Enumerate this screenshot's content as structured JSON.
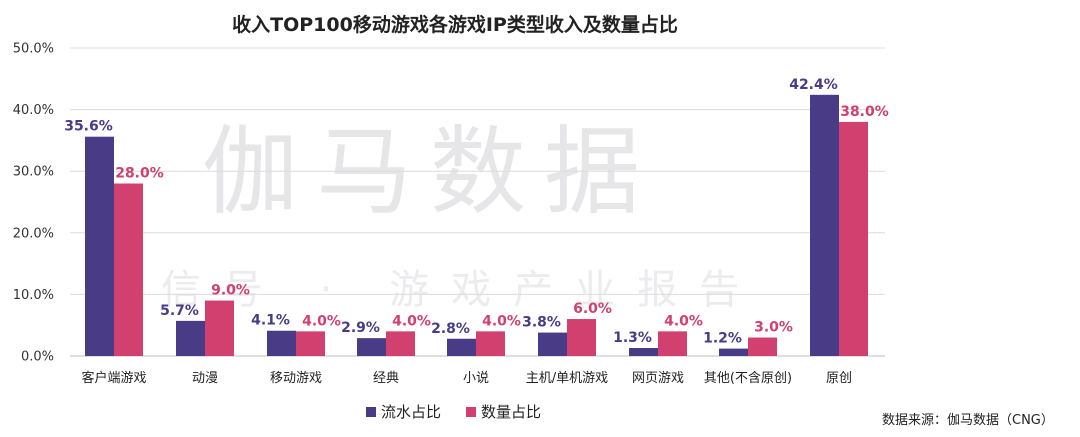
{
  "chart_data": {
    "type": "bar",
    "title": "收入TOP100移动游戏各游戏IP类型收入及数量占比",
    "categories": [
      "客户端游戏",
      "动漫",
      "移动游戏",
      "经典",
      "小说",
      "主机/单机游戏",
      "网页游戏",
      "其他(不含原创)",
      "原创"
    ],
    "series": [
      {
        "name": "流水占比",
        "color": "#4a3b87",
        "values": [
          35.6,
          5.7,
          4.1,
          2.9,
          2.8,
          3.8,
          1.3,
          1.2,
          42.4
        ],
        "labels": [
          "35.6%",
          "5.7%",
          "4.1%",
          "2.9%",
          "2.8%",
          "3.8%",
          "1.3%",
          "1.2%",
          "42.4%"
        ]
      },
      {
        "name": "数量占比",
        "color": "#d1406e",
        "values": [
          28.0,
          9.0,
          4.0,
          4.0,
          4.0,
          6.0,
          4.0,
          3.0,
          38.0
        ],
        "labels": [
          "28.0%",
          "9.0%",
          "4.0%",
          "4.0%",
          "4.0%",
          "6.0%",
          "4.0%",
          "3.0%",
          "38.0%"
        ]
      }
    ],
    "ylim": [
      0,
      50
    ],
    "yticks": [
      0,
      10,
      20,
      30,
      40,
      50
    ],
    "ytick_labels": [
      "0.0%",
      "10.0%",
      "20.0%",
      "30.0%",
      "40.0%",
      "50.0%"
    ],
    "grid": true,
    "legend_position": "bottom-center"
  },
  "watermark": {
    "main": "伽马数据",
    "sub": "微信号 · 游戏产业报告"
  },
  "source": "数据来源：伽马数据（CNG）"
}
